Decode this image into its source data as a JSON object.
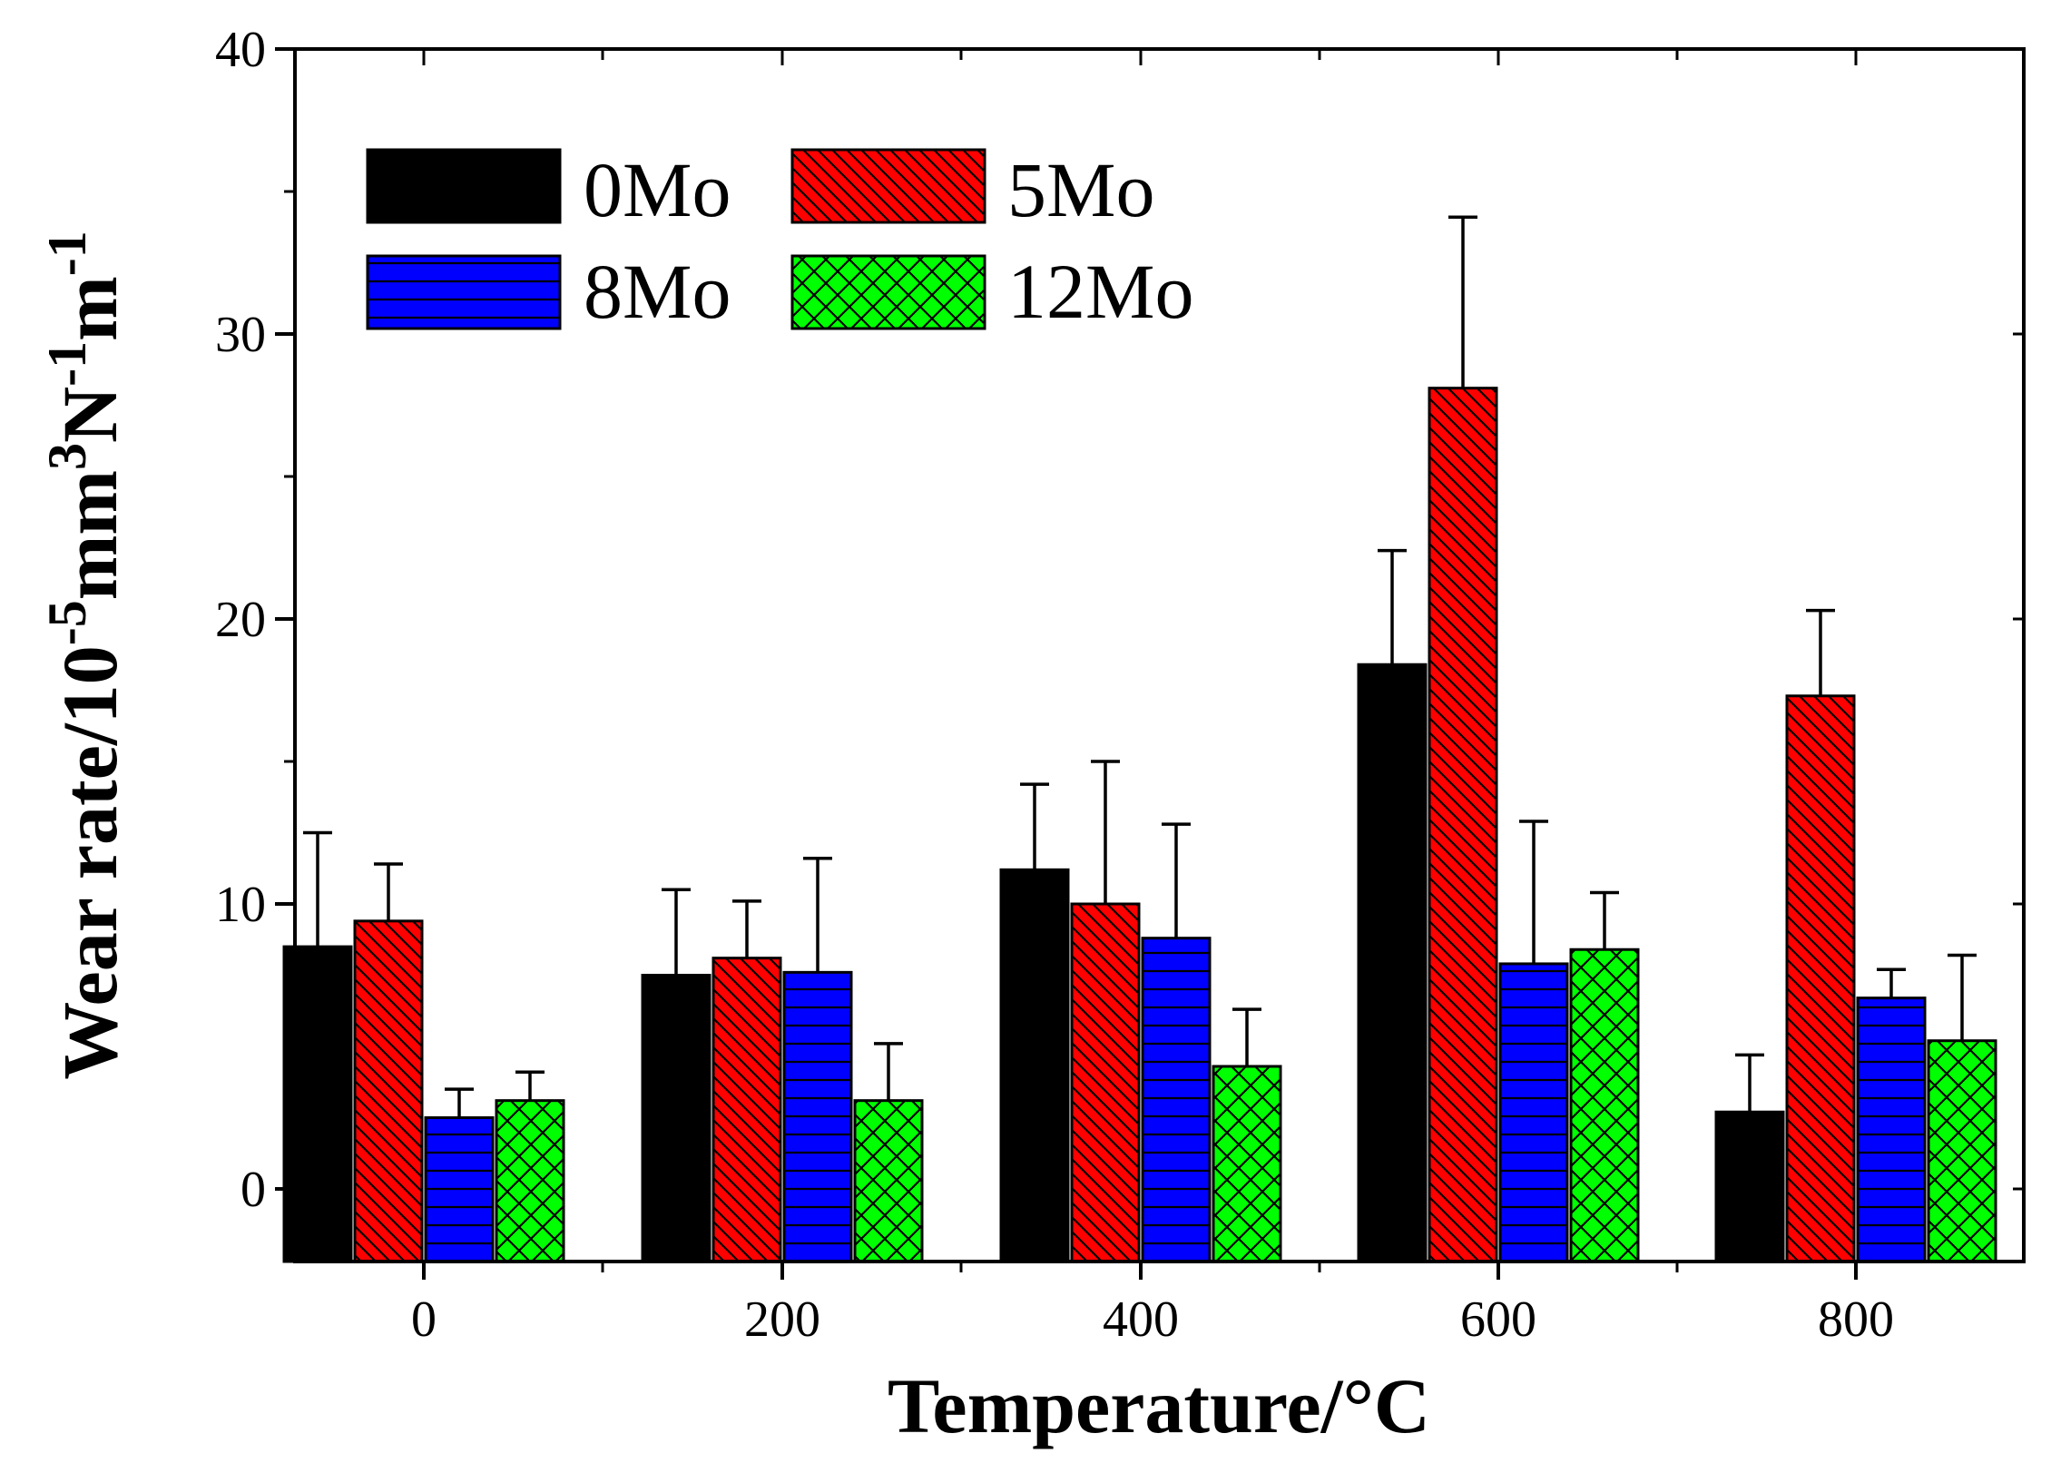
{
  "chart_data": {
    "type": "bar",
    "title": "",
    "xlabel": "Temperature/°C",
    "ylabel_parts": {
      "base": "Wear rate/10",
      "exp1": "-5",
      "unit1": "mm",
      "exp2": "3",
      "unit2": "N",
      "exp3": "-1",
      "unit3": "m",
      "exp4": "-1"
    },
    "categories": [
      "0",
      "200",
      "400",
      "600",
      "800"
    ],
    "ylim": [
      -2.5,
      40
    ],
    "yticks": [
      0,
      10,
      20,
      30,
      40
    ],
    "yticks_labels": [
      "0",
      "10",
      "20",
      "30",
      "40"
    ],
    "grid": false,
    "legend_position": "top-left",
    "series": [
      {
        "name": "0Mo",
        "color": "#000000",
        "pattern": "solid",
        "values": [
          8.5,
          7.5,
          11.2,
          18.4,
          2.7
        ],
        "errors": [
          4.0,
          3.0,
          3.0,
          4.0,
          2.0
        ]
      },
      {
        "name": "5Mo",
        "color": "#ff0000",
        "pattern": "diagonal",
        "values": [
          9.4,
          8.1,
          10.0,
          28.1,
          17.3
        ],
        "errors": [
          2.0,
          2.0,
          5.0,
          6.0,
          3.0
        ]
      },
      {
        "name": "8Mo",
        "color": "#0000ff",
        "pattern": "horizontal",
        "values": [
          2.5,
          7.6,
          8.8,
          7.9,
          6.7
        ],
        "errors": [
          1.0,
          4.0,
          4.0,
          5.0,
          1.0
        ]
      },
      {
        "name": "12Mo",
        "color": "#00ff00",
        "pattern": "crosshatch",
        "values": [
          3.1,
          3.1,
          4.3,
          8.4,
          5.2
        ],
        "errors": [
          1.0,
          2.0,
          2.0,
          2.0,
          3.0
        ]
      }
    ]
  }
}
